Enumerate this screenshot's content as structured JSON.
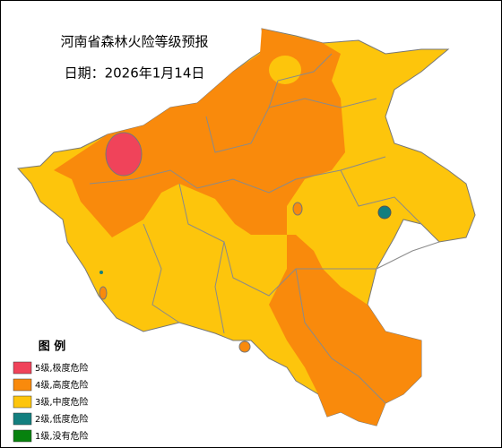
{
  "header": {
    "title": "河南省森林火险等级预报",
    "date": "日期：2026年1月14日"
  },
  "legend": {
    "title": "图  例",
    "items": [
      {
        "label": "5级,极度危险",
        "color": "#f0435a"
      },
      {
        "label": "4级,高度危险",
        "color": "#f98a0c"
      },
      {
        "label": "3级,中度危险",
        "color": "#fdc50c"
      },
      {
        "label": "2级,低度危险",
        "color": "#137f7f"
      },
      {
        "label": "1级,没有危险",
        "color": "#07820e"
      }
    ]
  }
}
